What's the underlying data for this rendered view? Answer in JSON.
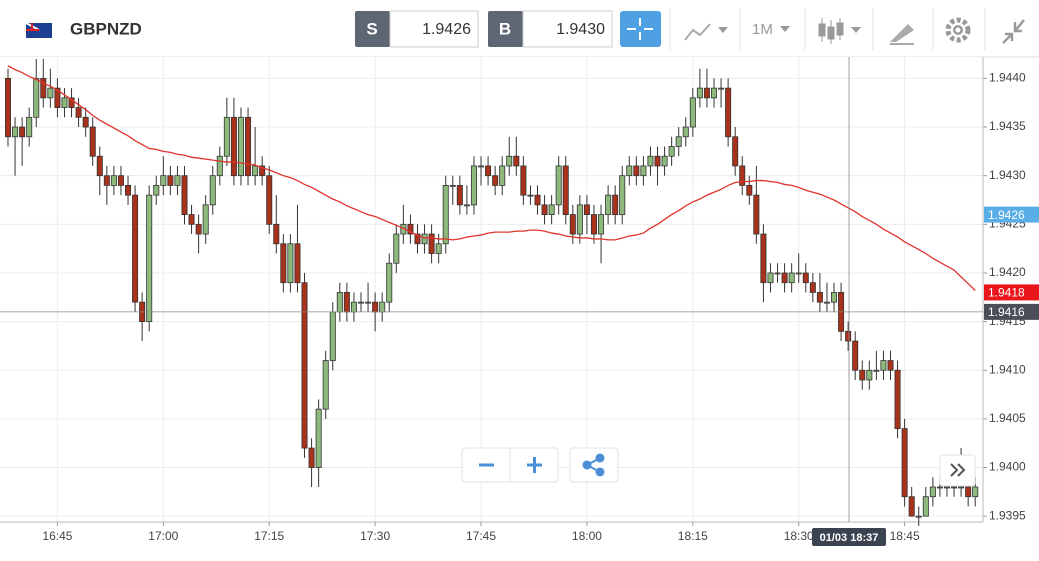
{
  "toolbar": {
    "symbol": "GBPNZD",
    "sell_label": "S",
    "sell_price": "1.9426",
    "buy_label": "B",
    "buy_price": "1.9430",
    "timeframe": "1M"
  },
  "chart_data": {
    "type": "candlestick",
    "x": [
      "16:38",
      "16:39",
      "16:40",
      "16:41",
      "16:42",
      "16:43",
      "16:44",
      "16:45",
      "16:46",
      "16:47",
      "16:48",
      "16:49",
      "16:50",
      "16:51",
      "16:52",
      "16:53",
      "16:54",
      "16:55",
      "16:56",
      "16:57",
      "16:58",
      "16:59",
      "17:00",
      "17:01",
      "17:02",
      "17:03",
      "17:04",
      "17:05",
      "17:06",
      "17:07",
      "17:08",
      "17:09",
      "17:10",
      "17:11",
      "17:12",
      "17:13",
      "17:14",
      "17:15",
      "17:16",
      "17:17",
      "17:18",
      "17:19",
      "17:20",
      "17:21",
      "17:22",
      "17:23",
      "17:24",
      "17:25",
      "17:26",
      "17:27",
      "17:28",
      "17:29",
      "17:30",
      "17:31",
      "17:32",
      "17:33",
      "17:34",
      "17:35",
      "17:36",
      "17:37",
      "17:38",
      "17:39",
      "17:40",
      "17:41",
      "17:42",
      "17:43",
      "17:44",
      "17:45",
      "17:46",
      "17:47",
      "17:48",
      "17:49",
      "17:50",
      "17:51",
      "17:52",
      "17:53",
      "17:54",
      "17:55",
      "17:56",
      "17:57",
      "17:58",
      "17:59",
      "18:00",
      "18:01",
      "18:02",
      "18:03",
      "18:04",
      "18:05",
      "18:06",
      "18:07",
      "18:08",
      "18:09",
      "18:10",
      "18:11",
      "18:12",
      "18:13",
      "18:14",
      "18:15",
      "18:16",
      "18:17",
      "18:18",
      "18:19",
      "18:20",
      "18:21",
      "18:22",
      "18:23",
      "18:24",
      "18:25",
      "18:26",
      "18:27",
      "18:28",
      "18:29",
      "18:30",
      "18:31",
      "18:32",
      "18:33",
      "18:34",
      "18:35",
      "18:36",
      "18:37",
      "18:38",
      "18:39",
      "18:40",
      "18:41",
      "18:42",
      "18:43",
      "18:44",
      "18:45",
      "18:46",
      "18:47",
      "18:48",
      "18:49",
      "18:50",
      "18:51",
      "18:52",
      "18:53",
      "18:54",
      "18:55"
    ],
    "open": [
      1.944,
      1.9434,
      1.9435,
      1.9434,
      1.9436,
      1.944,
      1.9438,
      1.9439,
      1.9437,
      1.9438,
      1.9437,
      1.9436,
      1.9435,
      1.9432,
      1.943,
      1.9429,
      1.943,
      1.9429,
      1.9428,
      1.9417,
      1.9415,
      1.9428,
      1.9429,
      1.943,
      1.9429,
      1.943,
      1.9426,
      1.9425,
      1.9424,
      1.9427,
      1.943,
      1.9432,
      1.9436,
      1.943,
      1.9436,
      1.943,
      1.9431,
      1.943,
      1.9425,
      1.9423,
      1.9419,
      1.9423,
      1.9419,
      1.9402,
      1.94,
      1.9406,
      1.9411,
      1.9416,
      1.9418,
      1.9416,
      1.9417,
      1.9417,
      1.9417,
      1.9416,
      1.9417,
      1.9421,
      1.9424,
      1.9425,
      1.9424,
      1.9423,
      1.9424,
      1.9422,
      1.9423,
      1.9429,
      1.9429,
      1.9427,
      1.9427,
      1.9431,
      1.9431,
      1.943,
      1.9429,
      1.9431,
      1.9432,
      1.9431,
      1.9428,
      1.9428,
      1.9427,
      1.9426,
      1.9427,
      1.9431,
      1.9426,
      1.9424,
      1.9427,
      1.9426,
      1.9424,
      1.9426,
      1.9428,
      1.9426,
      1.943,
      1.9431,
      1.943,
      1.9431,
      1.9432,
      1.9431,
      1.9432,
      1.9433,
      1.9434,
      1.9435,
      1.9438,
      1.9439,
      1.9438,
      1.9439,
      1.9439,
      1.9434,
      1.9431,
      1.9429,
      1.9428,
      1.9424,
      1.9419,
      1.942,
      1.942,
      1.9419,
      1.942,
      1.942,
      1.9419,
      1.9418,
      1.9417,
      1.9417,
      1.9418,
      1.9414,
      1.9413,
      1.941,
      1.9409,
      1.941,
      1.941,
      1.9411,
      1.941,
      1.9404,
      1.9397,
      1.9395,
      1.9395,
      1.9397,
      1.9398,
      1.9398,
      1.9398,
      1.9398,
      1.9398,
      1.9397
    ],
    "high": [
      1.9441,
      1.9436,
      1.9436,
      1.9437,
      1.9442,
      1.9442,
      1.9441,
      1.944,
      1.9439,
      1.9439,
      1.9438,
      1.9437,
      1.9436,
      1.9433,
      1.9431,
      1.9431,
      1.9431,
      1.943,
      1.9429,
      1.9418,
      1.9429,
      1.943,
      1.9432,
      1.9431,
      1.9431,
      1.9431,
      1.9427,
      1.9426,
      1.9428,
      1.9431,
      1.9433,
      1.9438,
      1.9438,
      1.9437,
      1.9437,
      1.9435,
      1.9432,
      1.9431,
      1.9428,
      1.9424,
      1.9424,
      1.9427,
      1.942,
      1.9403,
      1.9407,
      1.9412,
      1.9417,
      1.9419,
      1.9419,
      1.9418,
      1.9418,
      1.9419,
      1.9418,
      1.9418,
      1.9422,
      1.9425,
      1.9427,
      1.9426,
      1.9425,
      1.9425,
      1.9425,
      1.9424,
      1.943,
      1.943,
      1.943,
      1.9429,
      1.9432,
      1.9432,
      1.9432,
      1.9431,
      1.9432,
      1.9434,
      1.9434,
      1.9432,
      1.9429,
      1.9429,
      1.9428,
      1.9428,
      1.9432,
      1.9432,
      1.9427,
      1.9428,
      1.9428,
      1.9427,
      1.9427,
      1.9429,
      1.9429,
      1.9431,
      1.9432,
      1.9432,
      1.9432,
      1.9433,
      1.9433,
      1.9433,
      1.9434,
      1.9435,
      1.9436,
      1.9439,
      1.9441,
      1.9441,
      1.944,
      1.944,
      1.944,
      1.9435,
      1.9432,
      1.943,
      1.9431,
      1.9425,
      1.9421,
      1.9421,
      1.9421,
      1.9421,
      1.9422,
      1.9421,
      1.942,
      1.942,
      1.9419,
      1.9419,
      1.9419,
      1.9415,
      1.9414,
      1.9411,
      1.9411,
      1.9412,
      1.9412,
      1.9412,
      1.9411,
      1.9405,
      1.9398,
      1.9396,
      1.9398,
      1.9399,
      1.9399,
      1.94,
      1.9399,
      1.9402,
      1.9399,
      1.9399
    ],
    "low": [
      1.9433,
      1.943,
      1.9431,
      1.9433,
      1.9435,
      1.9437,
      1.9437,
      1.9436,
      1.9436,
      1.9436,
      1.9435,
      1.9434,
      1.9431,
      1.9428,
      1.9427,
      1.9428,
      1.9428,
      1.9427,
      1.9416,
      1.9413,
      1.9414,
      1.9427,
      1.9428,
      1.9428,
      1.9428,
      1.9425,
      1.9424,
      1.9422,
      1.9423,
      1.9426,
      1.9429,
      1.9431,
      1.9429,
      1.9429,
      1.9429,
      1.9429,
      1.9429,
      1.9424,
      1.9422,
      1.9418,
      1.9418,
      1.9418,
      1.9401,
      1.9398,
      1.9398,
      1.9405,
      1.941,
      1.9415,
      1.9415,
      1.9415,
      1.9416,
      1.9416,
      1.9414,
      1.9415,
      1.9416,
      1.942,
      1.9423,
      1.9423,
      1.9422,
      1.9422,
      1.9421,
      1.9421,
      1.9422,
      1.9427,
      1.9426,
      1.9426,
      1.9426,
      1.9429,
      1.9429,
      1.9428,
      1.9428,
      1.943,
      1.943,
      1.9427,
      1.9427,
      1.9426,
      1.9425,
      1.9425,
      1.9426,
      1.9425,
      1.9423,
      1.9423,
      1.9424,
      1.9423,
      1.9421,
      1.9425,
      1.9425,
      1.9425,
      1.9429,
      1.9429,
      1.9429,
      1.943,
      1.9429,
      1.943,
      1.9431,
      1.9432,
      1.9433,
      1.9434,
      1.9437,
      1.9437,
      1.9437,
      1.9437,
      1.9433,
      1.943,
      1.9428,
      1.9427,
      1.9423,
      1.9417,
      1.9418,
      1.9419,
      1.9418,
      1.9418,
      1.9419,
      1.9418,
      1.9417,
      1.9416,
      1.9416,
      1.9416,
      1.9413,
      1.9412,
      1.9409,
      1.9408,
      1.9408,
      1.9409,
      1.9409,
      1.9409,
      1.9403,
      1.9396,
      1.9395,
      1.9394,
      1.9395,
      1.9396,
      1.9397,
      1.9397,
      1.9397,
      1.9397,
      1.9396,
      1.9396
    ],
    "close": [
      1.9434,
      1.9435,
      1.9434,
      1.9436,
      1.944,
      1.9438,
      1.9439,
      1.9437,
      1.9438,
      1.9437,
      1.9436,
      1.9435,
      1.9432,
      1.943,
      1.9429,
      1.943,
      1.9429,
      1.9428,
      1.9417,
      1.9415,
      1.9428,
      1.9429,
      1.943,
      1.9429,
      1.943,
      1.9426,
      1.9425,
      1.9424,
      1.9427,
      1.943,
      1.9432,
      1.9436,
      1.943,
      1.9436,
      1.943,
      1.9431,
      1.943,
      1.9425,
      1.9423,
      1.9419,
      1.9423,
      1.9419,
      1.9402,
      1.94,
      1.9406,
      1.9411,
      1.9416,
      1.9418,
      1.9416,
      1.9417,
      1.9417,
      1.9417,
      1.9416,
      1.9417,
      1.9421,
      1.9424,
      1.9425,
      1.9424,
      1.9423,
      1.9424,
      1.9422,
      1.9423,
      1.9429,
      1.9429,
      1.9427,
      1.9427,
      1.9431,
      1.9431,
      1.943,
      1.9429,
      1.9431,
      1.9432,
      1.9431,
      1.9428,
      1.9428,
      1.9427,
      1.9426,
      1.9427,
      1.9431,
      1.9426,
      1.9424,
      1.9427,
      1.9426,
      1.9424,
      1.9426,
      1.9428,
      1.9426,
      1.943,
      1.9431,
      1.943,
      1.9431,
      1.9432,
      1.9431,
      1.9432,
      1.9433,
      1.9434,
      1.9435,
      1.9438,
      1.9439,
      1.9438,
      1.9439,
      1.9439,
      1.9434,
      1.9431,
      1.9429,
      1.9428,
      1.9424,
      1.9419,
      1.942,
      1.942,
      1.9419,
      1.942,
      1.942,
      1.9419,
      1.9418,
      1.9417,
      1.9417,
      1.9418,
      1.9414,
      1.9413,
      1.941,
      1.9409,
      1.941,
      1.941,
      1.9411,
      1.941,
      1.9404,
      1.9397,
      1.9395,
      1.9395,
      1.9397,
      1.9398,
      1.9398,
      1.9398,
      1.9398,
      1.9398,
      1.9397,
      1.9398
    ],
    "up_color": "#8dba7c",
    "down_color": "#a9321c",
    "ma_color": "#e0332b",
    "ma_values": [
      1.94413,
      1.94409,
      1.94406,
      1.94402,
      1.94399,
      1.94395,
      1.94392,
      1.94388,
      1.94383,
      1.94378,
      1.94373,
      1.94368,
      1.94362,
      1.94357,
      1.94353,
      1.94349,
      1.94345,
      1.94341,
      1.94336,
      1.94332,
      1.94328,
      1.94327,
      1.94325,
      1.94324,
      1.94322,
      1.94321,
      1.94319,
      1.94318,
      1.94317,
      1.94316,
      1.94315,
      1.94314,
      1.94314,
      1.94313,
      1.94312,
      1.94311,
      1.94308,
      1.94306,
      1.94303,
      1.943,
      1.94298,
      1.94295,
      1.94291,
      1.94288,
      1.94284,
      1.9428,
      1.94276,
      1.94273,
      1.94269,
      1.94266,
      1.94263,
      1.9426,
      1.94258,
      1.94255,
      1.94252,
      1.94249,
      1.94246,
      1.94242,
      1.94239,
      1.94236,
      1.94236,
      1.94235,
      1.94235,
      1.94234,
      1.94235,
      1.94237,
      1.94238,
      1.94239,
      1.94241,
      1.94242,
      1.94242,
      1.94242,
      1.94243,
      1.94243,
      1.94244,
      1.94244,
      1.94243,
      1.94241,
      1.9424,
      1.94238,
      1.94237,
      1.94236,
      1.94236,
      1.94235,
      1.94235,
      1.94234,
      1.94234,
      1.94236,
      1.94238,
      1.94239,
      1.94241,
      1.94246,
      1.9425,
      1.94255,
      1.9426,
      1.94264,
      1.94269,
      1.94273,
      1.94276,
      1.9428,
      1.94283,
      1.94286,
      1.9429,
      1.94293,
      1.94294,
      1.94294,
      1.94295,
      1.94295,
      1.94294,
      1.94293,
      1.94291,
      1.9429,
      1.94288,
      1.94285,
      1.94283,
      1.94281,
      1.94278,
      1.94275,
      1.94271,
      1.94267,
      1.94263,
      1.94258,
      1.94254,
      1.9425,
      1.94245,
      1.94241,
      1.94237,
      1.94232,
      1.94228,
      1.94224,
      1.9422,
      1.94215,
      1.94211,
      1.94207,
      1.94203,
      1.94196,
      1.94189,
      1.94182
    ],
    "ylim": [
      1.93944,
      1.94422
    ],
    "yticks": [
      1.9395,
      {
        "value": 1.94,
        "label": "1.9400"
      },
      1.9405,
      {
        "value": 1.941,
        "label": "1.9410"
      },
      1.9415,
      {
        "value": 1.942,
        "label": "1.9420"
      },
      1.9425,
      {
        "value": 1.943,
        "label": "1.9430"
      },
      1.9435,
      {
        "value": 1.944,
        "label": "1.9440"
      }
    ],
    "xticks": [
      "16:45",
      "17:00",
      "17:15",
      "17:30",
      "17:45",
      "18:00",
      "18:15",
      "18:30",
      "18:45"
    ],
    "grid": true,
    "price_labels": [
      {
        "value": 1.9426,
        "color": "#5aaee8"
      },
      {
        "value": 1.9418,
        "color": "#e8161b"
      }
    ],
    "crosshair": {
      "price": 1.9416,
      "time_label": "01/03 18:37"
    }
  }
}
